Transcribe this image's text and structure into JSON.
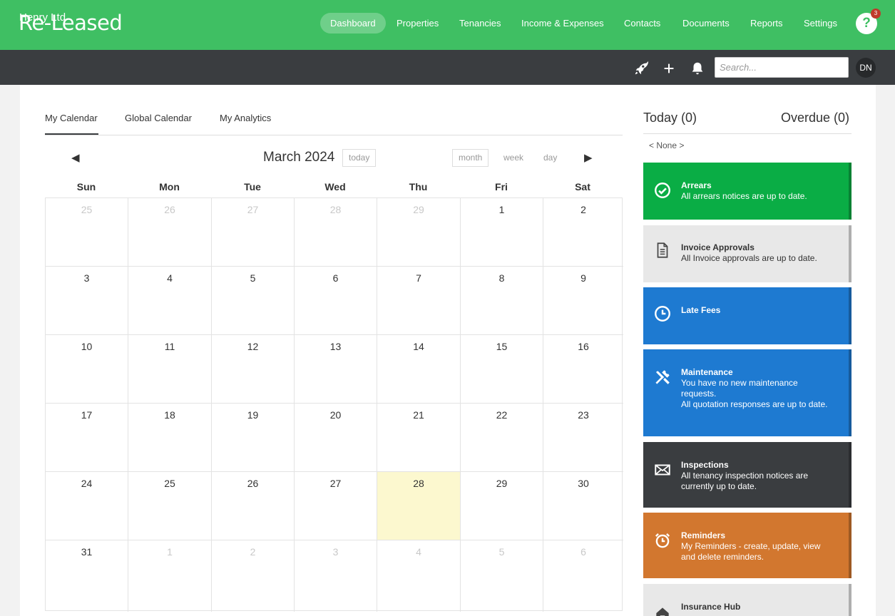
{
  "app": {
    "logo": "Re-Leased"
  },
  "nav": {
    "items": [
      {
        "label": "Dashboard",
        "active": true
      },
      {
        "label": "Properties"
      },
      {
        "label": "Tenancies"
      },
      {
        "label": "Income & Expenses"
      },
      {
        "label": "Contacts"
      },
      {
        "label": "Documents"
      },
      {
        "label": "Reports"
      },
      {
        "label": "Settings"
      }
    ],
    "help_label": "?",
    "help_badge": "3"
  },
  "subbar": {
    "company": "Henry Ltd",
    "icons": [
      "rocket-icon",
      "plus-icon",
      "bell-icon"
    ],
    "search_placeholder": "Search...",
    "avatar": "DN"
  },
  "tabs": [
    {
      "label": "My Calendar",
      "active": true
    },
    {
      "label": "Global Calendar"
    },
    {
      "label": "My Analytics"
    }
  ],
  "calendar": {
    "title": "March 2024",
    "prev": "◀",
    "next": "▶",
    "today_label": "today",
    "views": [
      "month",
      "week",
      "day"
    ],
    "days_of_week": [
      "Sun",
      "Mon",
      "Tue",
      "Wed",
      "Thu",
      "Fri",
      "Sat"
    ],
    "weeks": [
      [
        "25",
        "26",
        "27",
        "28",
        "29",
        "1",
        "2"
      ],
      [
        "3",
        "4",
        "5",
        "6",
        "7",
        "8",
        "9"
      ],
      [
        "10",
        "11",
        "12",
        "13",
        "14",
        "15",
        "16"
      ],
      [
        "17",
        "18",
        "19",
        "20",
        "21",
        "22",
        "23"
      ],
      [
        "24",
        "25",
        "26",
        "27",
        "28",
        "29",
        "30"
      ],
      [
        "31",
        "1",
        "2",
        "3",
        "4",
        "5",
        "6"
      ]
    ],
    "other_month": [
      [
        0,
        0
      ],
      [
        0,
        1
      ],
      [
        0,
        2
      ],
      [
        0,
        3
      ],
      [
        0,
        4
      ],
      [
        5,
        1
      ],
      [
        5,
        2
      ],
      [
        5,
        3
      ],
      [
        5,
        4
      ],
      [
        5,
        5
      ],
      [
        5,
        6
      ]
    ],
    "today_cell": [
      4,
      4
    ]
  },
  "panel": {
    "today": "Today (0)",
    "overdue": "Overdue (0)",
    "none": "< None >",
    "cards": [
      {
        "title": "Arrears",
        "lines": [
          "All arrears notices are up to date."
        ],
        "color": "#0aad45",
        "icon": "check-circle-icon"
      },
      {
        "title": "Invoice Approvals",
        "lines": [
          "All Invoice approvals are up to date."
        ],
        "color": "#e8e8e8",
        "icon": "document-icon"
      },
      {
        "title": "Late Fees",
        "lines": [],
        "color": "#1e7ad1",
        "icon": "clock-icon"
      },
      {
        "title": "Maintenance",
        "lines": [
          "You have no new maintenance requests.",
          "All quotation responses are up to date."
        ],
        "color": "#1e7ad1",
        "icon": "tools-icon"
      },
      {
        "title": "Inspections",
        "lines": [
          "All tenancy inspection notices are currently up to date."
        ],
        "color": "#3a3d40",
        "icon": "envelope-icon"
      },
      {
        "title": "Reminders",
        "lines": [
          "My Reminders - create, update, view and delete reminders."
        ],
        "color": "#d2772f",
        "icon": "alarm-clock-icon"
      },
      {
        "title": "Insurance Hub",
        "lines": [],
        "color": "#e8e8e8",
        "icon": "home-icon"
      }
    ]
  }
}
